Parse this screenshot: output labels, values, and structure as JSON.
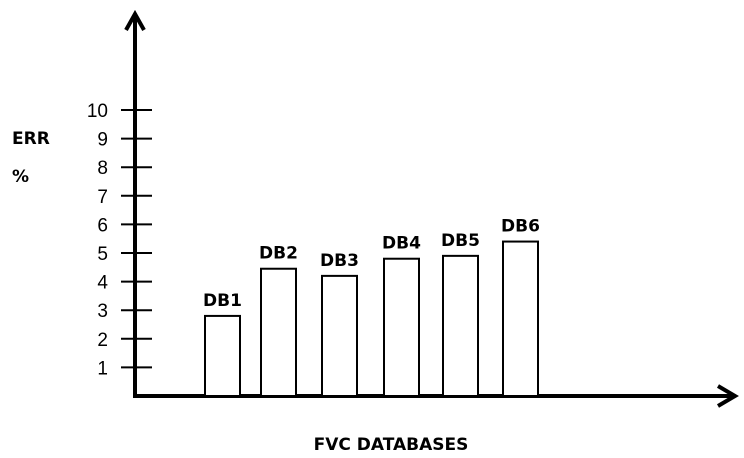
{
  "chart_data": {
    "type": "bar",
    "title": "",
    "xlabel": "FVC DATABASES",
    "ylabel_line1": "ERR",
    "ylabel_line2": "%",
    "categories": [
      "DB1",
      "DB2",
      "DB3",
      "DB4",
      "DB5",
      "DB6"
    ],
    "values": [
      2.8,
      4.45,
      4.2,
      4.8,
      4.9,
      5.4
    ],
    "yticks": [
      "1",
      "2",
      "3",
      "4",
      "5",
      "6",
      "7",
      "8",
      "9",
      "10"
    ],
    "ylim": [
      0,
      10
    ],
    "grid": false,
    "bar_fill": "#ffffff",
    "stroke": "#000000"
  }
}
